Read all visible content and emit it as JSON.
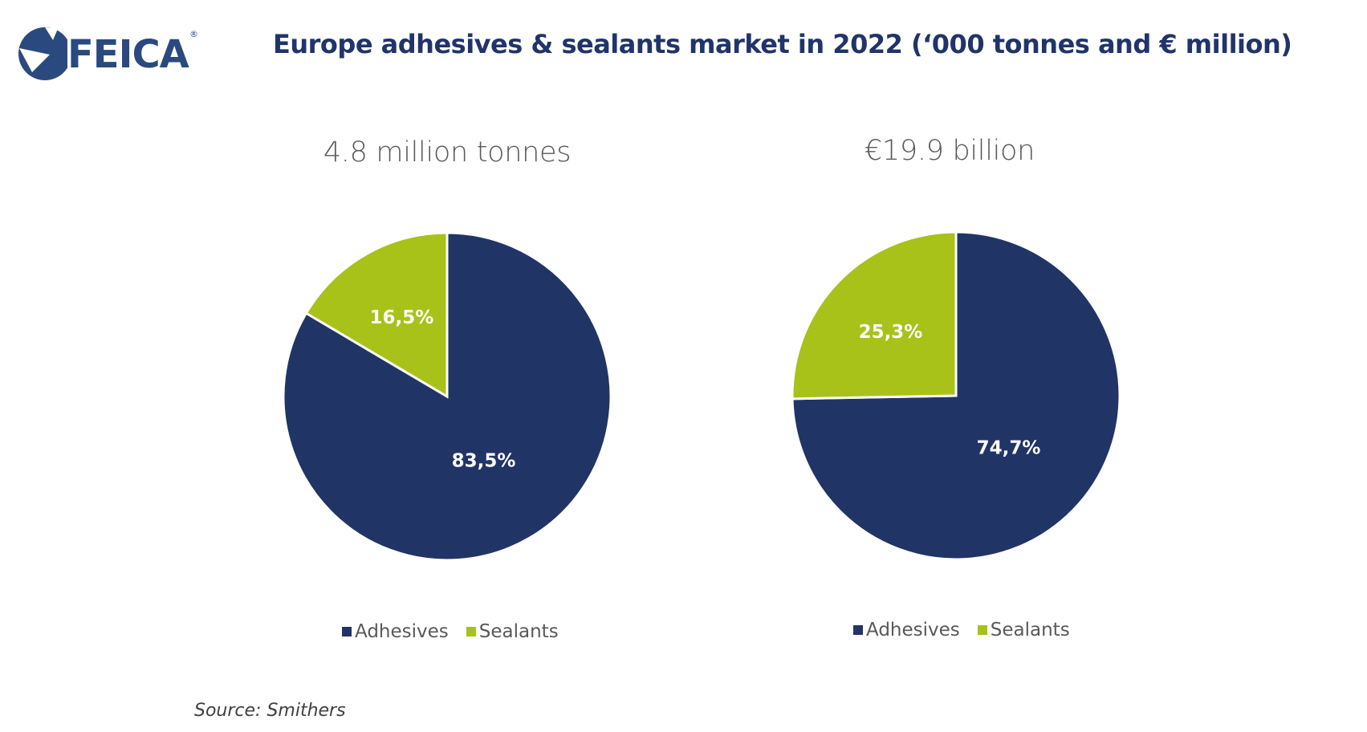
{
  "header": {
    "logo_text": "FEICA",
    "logo_mark": "®",
    "title": "Europe adhesives & sealants market in 2022 (‘000 tonnes and € million)"
  },
  "colors": {
    "adhesives": "#213466",
    "sealants": "#a8c21a",
    "title": "#21346a"
  },
  "chart_data": [
    {
      "type": "pie",
      "title": "4.8 million tonnes",
      "slices": [
        {
          "label": "Adhesives",
          "value": 83.5,
          "display": "83,5%"
        },
        {
          "label": "Sealants",
          "value": 16.5,
          "display": "16,5%"
        }
      ],
      "legend": [
        "Adhesives",
        "Sealants"
      ],
      "legend_position": "bottom"
    },
    {
      "type": "pie",
      "title": "€19.9 billion",
      "slices": [
        {
          "label": "Adhesives",
          "value": 74.7,
          "display": "74,7%"
        },
        {
          "label": "Sealants",
          "value": 25.3,
          "display": "25,3%"
        }
      ],
      "legend": [
        "Adhesives",
        "Sealants"
      ],
      "legend_position": "bottom"
    }
  ],
  "footer": {
    "source": "Source: Smithers"
  }
}
